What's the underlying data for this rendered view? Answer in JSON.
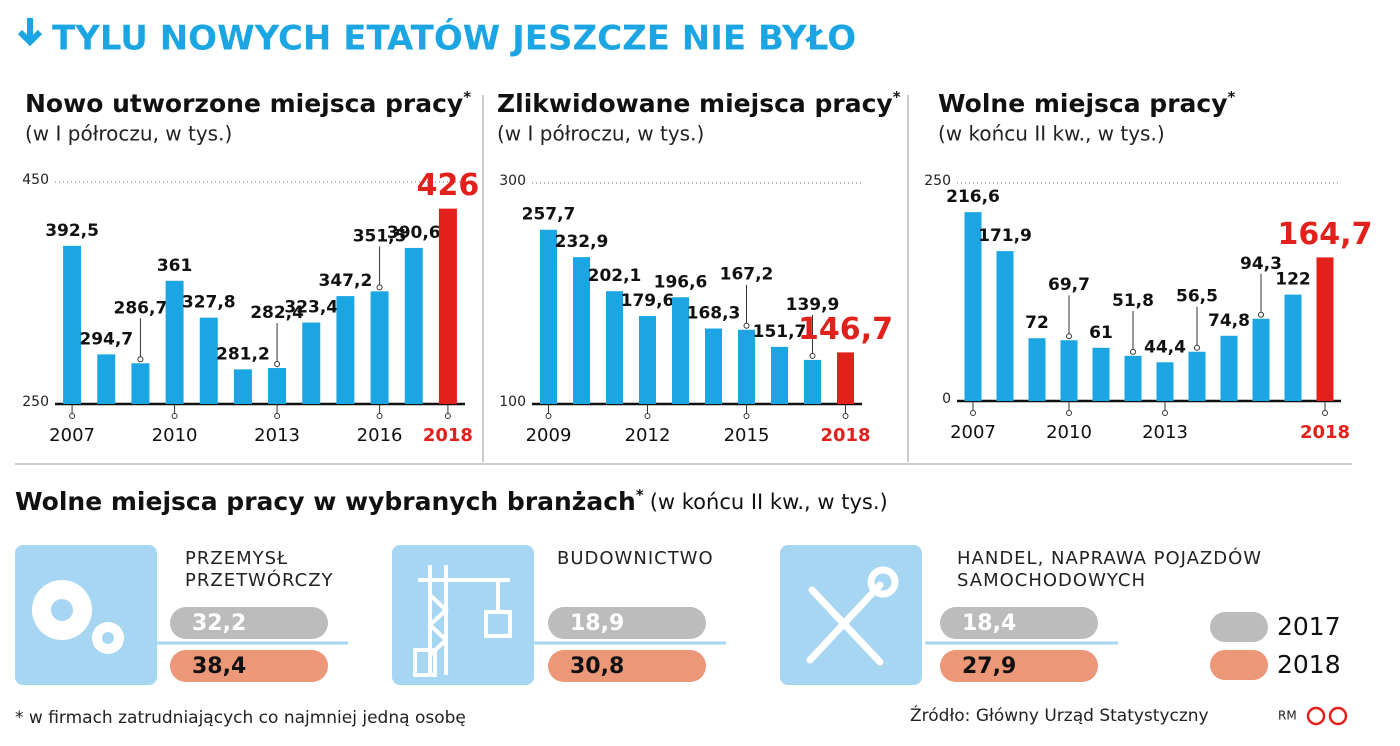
{
  "title": "TYLU NOWYCH ETATÓW JESZCZE NIE BYŁO",
  "chart_data": [
    {
      "type": "bar",
      "title": "Nowo utworzone miejsca pracy",
      "title_note": "*",
      "subtitle": "(w I półroczu, w tys.)",
      "categories": [
        "2007",
        null,
        null,
        "2010",
        null,
        null,
        "2013",
        null,
        null,
        "2016",
        null,
        "2018"
      ],
      "values": [
        392.5,
        294.7,
        286.7,
        361,
        327.8,
        281.2,
        282.4,
        323.4,
        347.2,
        351.5,
        390.6,
        426
      ],
      "value_labels": [
        "392,5",
        "294,7",
        "286,7",
        "361",
        "327,8",
        "281,2",
        "282,4",
        "323,4",
        "347,2",
        "351,5",
        "390,6",
        "426"
      ],
      "colors": [
        "#1ba6e3",
        "#1ba6e3",
        "#1ba6e3",
        "#1ba6e3",
        "#1ba6e3",
        "#1ba6e3",
        "#1ba6e3",
        "#1ba6e3",
        "#1ba6e3",
        "#1ba6e3",
        "#1ba6e3",
        "#e2211c"
      ],
      "ylim": [
        250,
        450
      ],
      "yticks": [
        250,
        450
      ],
      "grid": true
    },
    {
      "type": "bar",
      "title": "Zlikwidowane miejsca pracy",
      "title_note": "*",
      "subtitle": "(w I półroczu, w tys.)",
      "categories": [
        "2009",
        null,
        null,
        "2012",
        null,
        null,
        "2015",
        null,
        null,
        "2018"
      ],
      "values": [
        257.7,
        232.9,
        202.1,
        179.6,
        196.6,
        168.3,
        167.2,
        151.7,
        139.9,
        146.7
      ],
      "value_labels": [
        "257,7",
        "232,9",
        "202,1",
        "179,6",
        "196,6",
        "168,3",
        "167,2",
        "151,7",
        "139,9",
        "146,7"
      ],
      "colors": [
        "#1ba6e3",
        "#1ba6e3",
        "#1ba6e3",
        "#1ba6e3",
        "#1ba6e3",
        "#1ba6e3",
        "#1ba6e3",
        "#1ba6e3",
        "#1ba6e3",
        "#e2211c"
      ],
      "ylim": [
        100,
        300
      ],
      "yticks": [
        100,
        300
      ],
      "grid": true
    },
    {
      "type": "bar",
      "title": "Wolne miejsca pracy",
      "title_note": "*",
      "subtitle": "(w końcu II kw., w tys.)",
      "categories": [
        "2007",
        null,
        null,
        "2010",
        null,
        null,
        "2013",
        null,
        null,
        null,
        null,
        "2018"
      ],
      "values": [
        216.6,
        171.9,
        72,
        69.7,
        61,
        51.8,
        44.4,
        56.5,
        74.8,
        94.3,
        122,
        164.7
      ],
      "value_labels": [
        "216,6",
        "171,9",
        "72",
        "69,7",
        "61",
        "51,8",
        "44,4",
        "56,5",
        "74,8",
        "94,3",
        "122",
        "164,7"
      ],
      "colors": [
        "#1ba6e3",
        "#1ba6e3",
        "#1ba6e3",
        "#1ba6e3",
        "#1ba6e3",
        "#1ba6e3",
        "#1ba6e3",
        "#1ba6e3",
        "#1ba6e3",
        "#1ba6e3",
        "#1ba6e3",
        "#e2211c"
      ],
      "ylim": [
        0,
        250
      ],
      "yticks": [
        0,
        250
      ],
      "grid": true
    },
    {
      "type": "pill",
      "title": "Wolne miejsca pracy w wybranych branżach",
      "title_note": "*",
      "subtitle": "(w końcu II kw., w tys.)",
      "categories": [
        "PRZEMYSŁ PRZETWÓRCZY",
        "BUDOWNICTWO",
        "HANDEL, NAPRAWA POJAZDÓW SAMOCHODOWYCH"
      ],
      "series": [
        {
          "name": "2017",
          "color": "#bdbcbc",
          "values": [
            32.2,
            18.9,
            18.4
          ],
          "value_labels": [
            "32,2",
            "18,9",
            "18,4"
          ]
        },
        {
          "name": "2018",
          "color": "#ec9778",
          "values": [
            38.4,
            30.8,
            27.9
          ],
          "value_labels": [
            "38,4",
            "30,8",
            "27,9"
          ]
        }
      ]
    }
  ],
  "footnote": "* w firmach zatrudniających co najmniej jedną osobę",
  "source": "Źródło: Główny Urząd Statystyczny",
  "credit": "RM"
}
